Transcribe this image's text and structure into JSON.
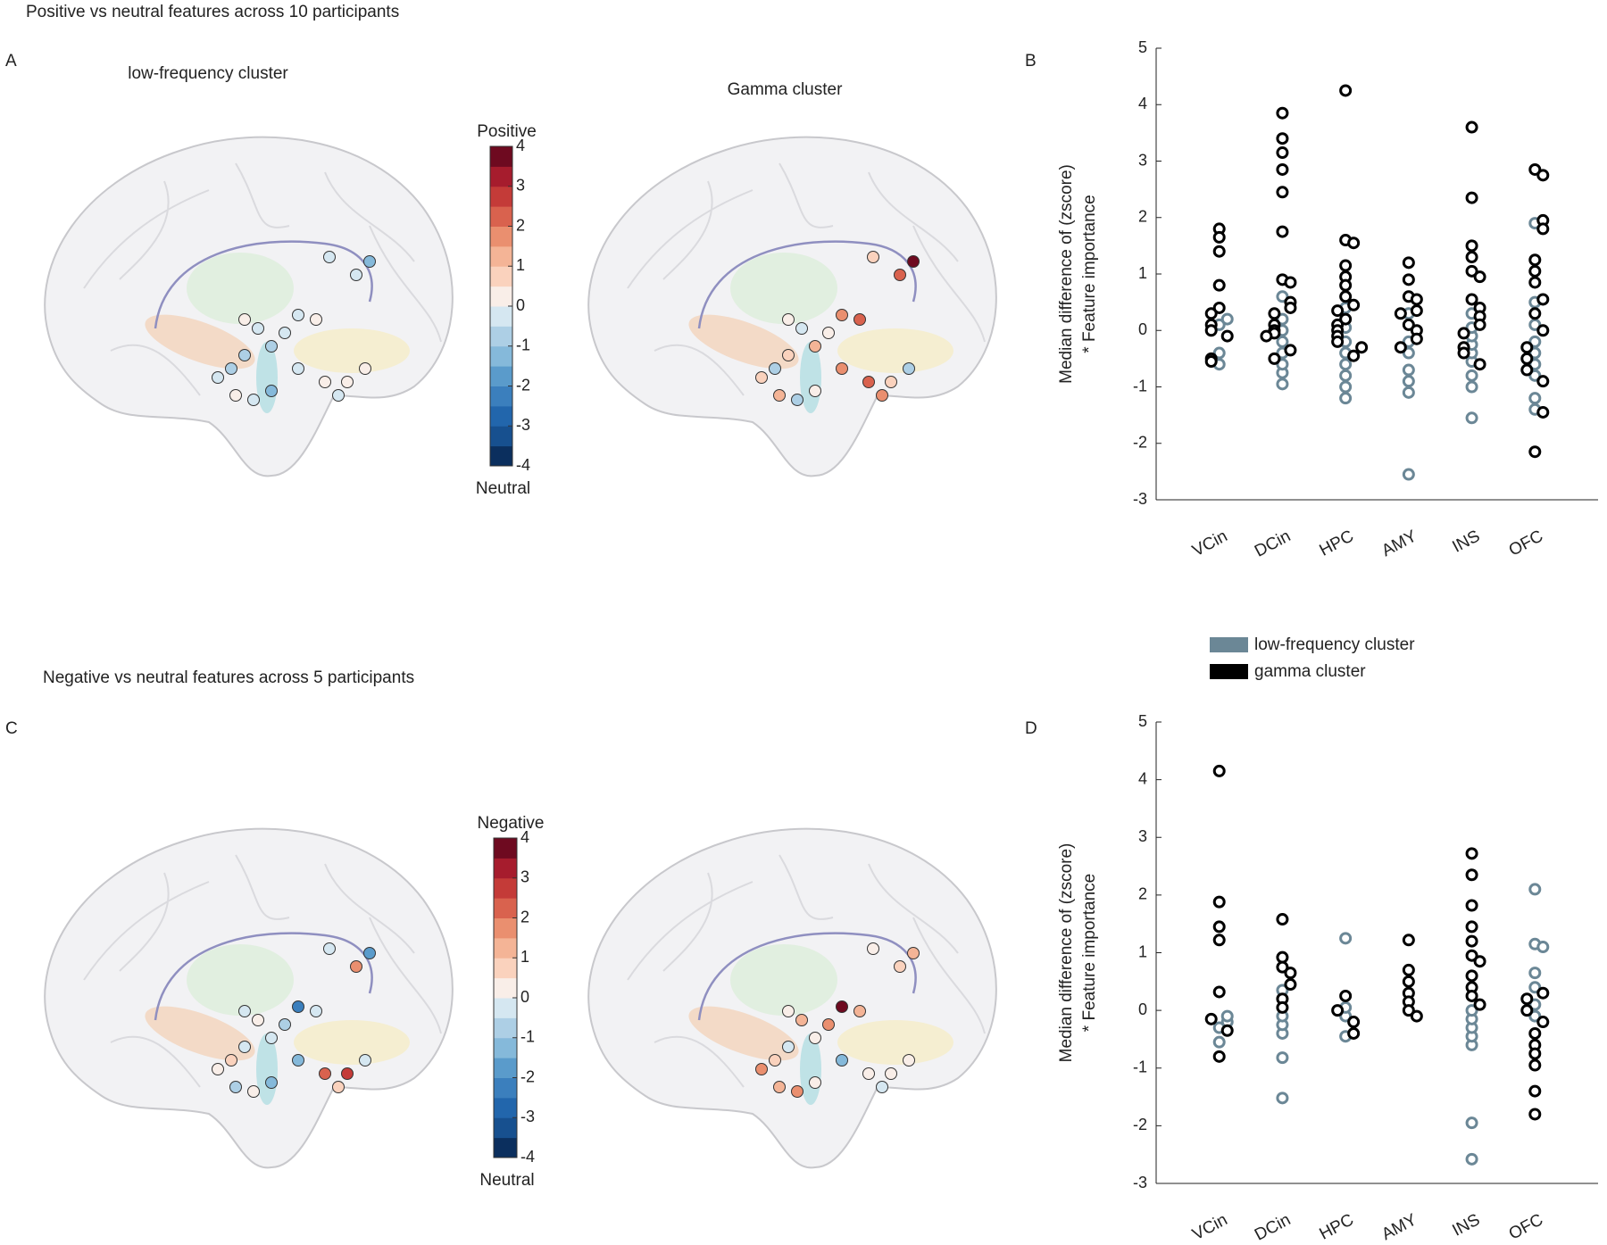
{
  "figure": {
    "title_top": "Positive vs neutral features across 10 participants",
    "title_bottom": "Negative vs neutral features across 5 participants",
    "panels": [
      "A",
      "B",
      "C",
      "D"
    ]
  },
  "chart_data": [
    {
      "type": "brain",
      "title": "low-frequency cluster",
      "values": [
        -1.3,
        -0.4,
        -0.2,
        -0.3,
        0,
        -0.5,
        -0.6,
        -0.2,
        -0.8,
        -1.0,
        -0.3,
        -0.1,
        0.3,
        0.2,
        0.4,
        -0.2,
        0,
        -0.4,
        -1.2,
        0
      ]
    },
    {
      "type": "brain",
      "title": "Gamma cluster",
      "values": [
        4,
        2.2,
        0.5,
        1.5,
        2,
        0.3,
        1.2,
        -0.5,
        0.8,
        -1.0,
        0.5,
        1.8,
        2.3,
        0.8,
        -0.8,
        1.5,
        1.3,
        -0.6,
        0.4,
        0.2
      ]
    },
    {
      "type": "colorbar",
      "top_label": "Positive",
      "bottom_label": "Neutral",
      "clim": [
        -4,
        4
      ],
      "ticks": [
        -4,
        -3,
        -2,
        -1,
        0,
        1,
        2,
        3,
        4
      ],
      "colors": [
        "#0b2f5e",
        "#17508f",
        "#2266ac",
        "#3b7fbd",
        "#5a9bcb",
        "#85b9da",
        "#adcfe5",
        "#d5e7f1",
        "#f9eee8",
        "#fad2bd",
        "#f4b496",
        "#ea8f6f",
        "#d9624e",
        "#c43b38",
        "#a61c2d",
        "#6e0a20"
      ]
    },
    {
      "type": "strip",
      "categories": [
        "VCin",
        "DCin",
        "HPC",
        "AMY",
        "INS",
        "OFC"
      ],
      "ylabel": [
        "Median difference of  (zscore)",
        "* Feature importance"
      ],
      "ylim": [
        -3,
        5
      ],
      "yticks": [
        -3,
        -2,
        -1,
        0,
        1,
        2,
        3,
        4,
        5
      ],
      "series": [
        {
          "color": "#6b8796",
          "values": [
            [
              -0.6,
              -0.4,
              0.1,
              0.2
            ],
            [
              -0.95,
              -0.75,
              -0.6,
              -0.4,
              -0.2,
              0.0,
              0.2,
              0.6
            ],
            [
              -1.2,
              -1.0,
              -0.8,
              -0.6,
              -0.4,
              -0.2,
              0.05,
              0.4
            ],
            [
              -2.55,
              -1.1,
              -0.9,
              -0.7,
              -0.4,
              -0.2,
              0.3
            ],
            [
              -1.55,
              -1.0,
              -0.8,
              -0.55,
              -0.4,
              -0.25,
              -0.1,
              0.05,
              0.3
            ],
            [
              -1.4,
              -1.2,
              -0.8,
              -0.6,
              -0.4,
              -0.2,
              0.1,
              0.5,
              1.9
            ]
          ]
        },
        {
          "color": "#000000",
          "values": [
            [
              1.8,
              1.65,
              1.4,
              0.8,
              0.4,
              0.3,
              0.1,
              0.0,
              -0.1,
              -0.5,
              -0.55
            ],
            [
              3.85,
              3.4,
              3.15,
              2.85,
              2.45,
              1.75,
              0.9,
              0.85,
              0.5,
              0.4,
              0.3,
              0.1,
              0,
              -0.05,
              -0.1,
              -0.35,
              -0.5
            ],
            [
              4.25,
              1.6,
              1.55,
              1.15,
              0.95,
              0.8,
              0.6,
              0.45,
              0.35,
              0.2,
              0.1,
              0,
              -0.1,
              -0.2,
              -0.3,
              -0.45
            ],
            [
              1.2,
              0.9,
              0.6,
              0.55,
              0.35,
              0.3,
              0.1,
              0,
              -0.15,
              -0.3
            ],
            [
              3.6,
              2.35,
              1.5,
              1.3,
              1.05,
              0.95,
              0.55,
              0.4,
              0.25,
              0.1,
              -0.05,
              -0.3,
              -0.4,
              -0.6
            ],
            [
              2.85,
              2.75,
              1.95,
              1.8,
              1.25,
              1.05,
              0.85,
              0.55,
              0.3,
              0.0,
              -0.3,
              -0.5,
              -0.7,
              -0.9,
              -1.45,
              -2.15
            ]
          ]
        }
      ]
    },
    {
      "type": "brain",
      "values": [
        -1.8,
        1.5,
        -0.3,
        -2.2,
        -0.5,
        -0.8,
        -0.3,
        0,
        -0.2,
        0.6,
        0.2,
        -1.5,
        2.1,
        2.5,
        -0.3,
        0.5,
        -0.8,
        0,
        -1.2,
        -0.4
      ]
    },
    {
      "type": "brain",
      "values": [
        1.2,
        0.8,
        0.3,
        3.5,
        1.0,
        1.5,
        0.2,
        1.0,
        -0.5,
        0.6,
        1.5,
        -1.5,
        0.3,
        0,
        0.2,
        -0.3,
        1.3,
        1.8,
        0.3,
        0.4
      ]
    },
    {
      "type": "colorbar",
      "top_label": "Negative",
      "bottom_label": "Neutral",
      "clim": [
        -4,
        4
      ],
      "ticks": [
        -4,
        -3,
        -2,
        -1,
        0,
        1,
        2,
        3,
        4
      ],
      "colors": [
        "#0b2f5e",
        "#17508f",
        "#2266ac",
        "#3b7fbd",
        "#5a9bcb",
        "#85b9da",
        "#adcfe5",
        "#d5e7f1",
        "#f9eee8",
        "#fad2bd",
        "#f4b496",
        "#ea8f6f",
        "#d9624e",
        "#c43b38",
        "#a61c2d",
        "#6e0a20"
      ]
    },
    {
      "type": "strip",
      "categories": [
        "VCin",
        "DCin",
        "HPC",
        "AMY",
        "INS",
        "OFC"
      ],
      "ylabel": [
        "Median difference of  (zscore)",
        "* Feature importance"
      ],
      "ylim": [
        -3,
        5
      ],
      "yticks": [
        -3,
        -2,
        -1,
        0,
        1,
        2,
        3,
        4,
        5
      ],
      "series": [
        {
          "name": "low-frequency cluster",
          "color": "#6b8796",
          "values": [
            [
              -0.55,
              -0.3,
              -0.2,
              -0.1
            ],
            [
              -1.52,
              -0.82,
              -0.4,
              -0.25,
              -0.1,
              0.35
            ],
            [
              1.25,
              -0.45,
              -0.1,
              0.05
            ],
            [],
            [
              -2.58,
              -1.95,
              -0.6,
              -0.45,
              -0.3,
              -0.15,
              0.0
            ],
            [
              2.1,
              1.15,
              1.1,
              0.65,
              0.4,
              0.1,
              -0.1
            ]
          ]
        },
        {
          "name": "gamma cluster",
          "color": "#000000",
          "values": [
            [
              4.15,
              1.88,
              1.45,
              1.22,
              0.32,
              -0.15,
              -0.35,
              -0.8
            ],
            [
              1.58,
              0.92,
              0.75,
              0.65,
              0.45,
              0.2,
              0.05
            ],
            [
              0.25,
              0.0,
              -0.2,
              -0.4
            ],
            [
              1.22,
              0.7,
              0.5,
              0.3,
              0.15,
              0.0,
              -0.1
            ],
            [
              2.72,
              2.35,
              1.82,
              1.45,
              1.2,
              0.95,
              0.85,
              0.6,
              0.4,
              0.25,
              0.1
            ],
            [
              0.3,
              0.2,
              0.0,
              -0.2,
              -0.4,
              -0.6,
              -0.75,
              -0.95,
              -1.4,
              -1.8
            ]
          ]
        }
      ]
    }
  ]
}
